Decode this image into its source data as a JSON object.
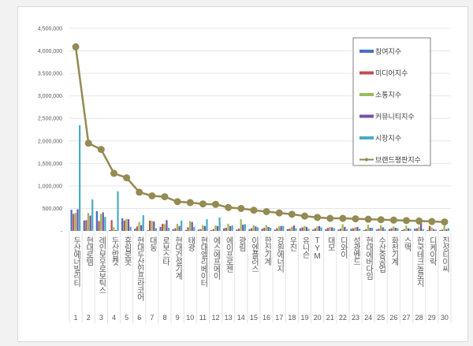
{
  "chart_data": {
    "type": "bar",
    "title": "",
    "xlabel": "",
    "ylabel": "",
    "ylim": [
      0,
      4500000
    ],
    "yticks": [
      "-",
      "500,000",
      "1,000,000",
      "1,500,000",
      "2,000,000",
      "2,500,000",
      "3,000,000",
      "3,500,000",
      "4,000,000",
      "4,500,000"
    ],
    "grid": true,
    "legend_position": "top-right",
    "ranks": [
      "1",
      "2",
      "3",
      "4",
      "5",
      "6",
      "7",
      "8",
      "9",
      "10",
      "11",
      "12",
      "13",
      "14",
      "15",
      "16",
      "17",
      "18",
      "19",
      "20",
      "21",
      "22",
      "23",
      "24",
      "25",
      "26",
      "27",
      "28",
      "29",
      "30"
    ],
    "categories": [
      "두산에너빌리티",
      "현대로템",
      "레인보우로보틱스",
      "두산밥캣",
      "휴림로봇",
      "현대두산인프라코어",
      "대동",
      "로보스타",
      "현대건설기계",
      "태광",
      "현대엘리베이터",
      "에스에프에이",
      "에이프로젠",
      "광림",
      "이엔플러스",
      "한신기계",
      "강원에너지",
      "우진",
      "유니슨",
      "TYM",
      "대모",
      "디와이",
      "성광벤드",
      "현대에버다임",
      "수산중공업",
      "화천기계",
      "스맥",
      "한국테크놀로지",
      "디케이락",
      "진성티이씨"
    ],
    "series": [
      {
        "name": "참여지수",
        "color": "#4472c4",
        "values": [
          470000,
          230000,
          440000,
          20000,
          280000,
          50000,
          20000,
          90000,
          40000,
          20000,
          30000,
          20000,
          60000,
          30000,
          40000,
          50000,
          30000,
          40000,
          60000,
          30000,
          40000,
          30000,
          50000,
          20000,
          30000,
          40000,
          20000,
          50000,
          20000,
          20000
        ]
      },
      {
        "name": "미디어지수",
        "color": "#c0504d",
        "values": [
          380000,
          240000,
          220000,
          240000,
          230000,
          100000,
          230000,
          160000,
          60000,
          80000,
          40000,
          40000,
          70000,
          50000,
          60000,
          70000,
          60000,
          50000,
          80000,
          60000,
          70000,
          50000,
          60000,
          40000,
          50000,
          60000,
          40000,
          60000,
          110000,
          30000
        ]
      },
      {
        "name": "소통지수",
        "color": "#9bbb59",
        "values": [
          400000,
          400000,
          380000,
          80000,
          270000,
          200000,
          220000,
          150000,
          160000,
          220000,
          130000,
          120000,
          160000,
          260000,
          130000,
          130000,
          100000,
          90000,
          110000,
          100000,
          90000,
          150000,
          80000,
          140000,
          130000,
          100000,
          120000,
          90000,
          80000,
          120000
        ]
      },
      {
        "name": "커뮤니티지수",
        "color": "#7851a9",
        "values": [
          480000,
          340000,
          410000,
          20000,
          260000,
          130000,
          210000,
          240000,
          110000,
          200000,
          110000,
          110000,
          110000,
          140000,
          100000,
          90000,
          110000,
          120000,
          90000,
          110000,
          80000,
          90000,
          90000,
          70000,
          80000,
          70000,
          60000,
          170000,
          40000,
          40000
        ]
      },
      {
        "name": "시장지수",
        "color": "#4bacc6",
        "values": [
          2350000,
          700000,
          310000,
          880000,
          90000,
          350000,
          60000,
          70000,
          230000,
          90000,
          260000,
          300000,
          120000,
          150000,
          80000,
          70000,
          110000,
          60000,
          50000,
          80000,
          60000,
          40000,
          50000,
          70000,
          40000,
          60000,
          50000,
          40000,
          30000,
          60000
        ]
      },
      {
        "name": "브랜드평판지수",
        "color": "#948a54",
        "type": "line",
        "values": [
          4090000,
          1950000,
          1810000,
          1280000,
          1180000,
          860000,
          780000,
          760000,
          650000,
          630000,
          600000,
          590000,
          520000,
          500000,
          460000,
          430000,
          400000,
          370000,
          330000,
          300000,
          280000,
          280000,
          270000,
          260000,
          250000,
          240000,
          230000,
          220000,
          210000,
          200000
        ]
      }
    ]
  }
}
